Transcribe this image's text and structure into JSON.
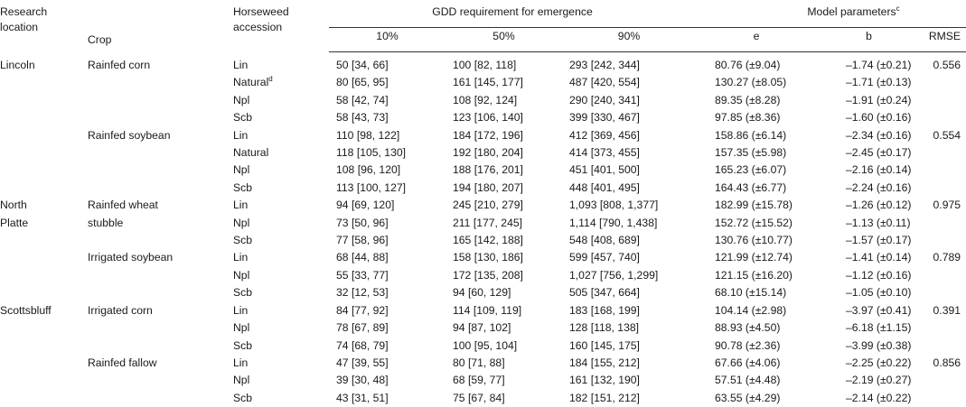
{
  "header": {
    "research_location": "Research location",
    "crop": "Crop",
    "accession": "Horseweed accession",
    "gdd_group": "GDD requirement for emergence",
    "model_group": "Model parameters",
    "model_group_sup": "c",
    "pct10": "10%",
    "pct50": "50%",
    "pct90": "90%",
    "e": "e",
    "b": "b",
    "rmse": "RMSE"
  },
  "rows": [
    {
      "location": "Lincoln",
      "crop": "Rainfed corn",
      "accession": "Lin",
      "accession_sup": "",
      "g10": "50 [34, 66]",
      "g50": "100 [82, 118]",
      "g90": "293 [242, 344]",
      "e": "80.76 (±9.04)",
      "b": "–1.74 (±0.21)",
      "rmse": "0.556"
    },
    {
      "location": "",
      "crop": "",
      "accession": "Natural",
      "accession_sup": "d",
      "g10": "80 [65, 95]",
      "g50": "161 [145, 177]",
      "g90": "487 [420, 554]",
      "e": "130.27 (±8.05)",
      "b": "–1.71 (±0.13)",
      "rmse": ""
    },
    {
      "location": "",
      "crop": "",
      "accession": "Npl",
      "accession_sup": "",
      "g10": "58 [42, 74]",
      "g50": "108 [92, 124]",
      "g90": "290 [240, 341]",
      "e": "89.35 (±8.28)",
      "b": "–1.91 (±0.24)",
      "rmse": ""
    },
    {
      "location": "",
      "crop": "",
      "accession": "Scb",
      "accession_sup": "",
      "g10": "58 [43, 73]",
      "g50": "123 [106, 140]",
      "g90": "399 [330, 467]",
      "e": "97.85 (±8.36)",
      "b": "–1.60 (±0.16)",
      "rmse": ""
    },
    {
      "location": "",
      "crop": "Rainfed soybean",
      "accession": "Lin",
      "accession_sup": "",
      "g10": "110 [98, 122]",
      "g50": "184 [172, 196]",
      "g90": "412 [369, 456]",
      "e": "158.86 (±6.14)",
      "b": "–2.34 (±0.16)",
      "rmse": "0.554"
    },
    {
      "location": "",
      "crop": "",
      "accession": "Natural",
      "accession_sup": "",
      "g10": "118 [105, 130]",
      "g50": "192 [180, 204]",
      "g90": "414 [373, 455]",
      "e": "157.35 (±5.98)",
      "b": "–2.45 (±0.17)",
      "rmse": ""
    },
    {
      "location": "",
      "crop": "",
      "accession": "Npl",
      "accession_sup": "",
      "g10": "108 [96, 120]",
      "g50": "188 [176, 201]",
      "g90": "451 [401, 500]",
      "e": "165.23 (±6.07)",
      "b": "–2.16 (±0.14)",
      "rmse": ""
    },
    {
      "location": "",
      "crop": "",
      "accession": "Scb",
      "accession_sup": "",
      "g10": "113 [100, 127]",
      "g50": "194 [180, 207]",
      "g90": "448 [401, 495]",
      "e": "164.43 (±6.77)",
      "b": "–2.24 (±0.16)",
      "rmse": ""
    },
    {
      "location": "North",
      "crop": "Rainfed wheat",
      "accession": "Lin",
      "accession_sup": "",
      "g10": "94 [69, 120]",
      "g50": "245 [210, 279]",
      "g90": "1,093 [808, 1,377]",
      "e": "182.99 (±15.78)",
      "b": "–1.26 (±0.12)",
      "rmse": "0.975"
    },
    {
      "location": "Platte",
      "crop": "stubble",
      "accession": "Npl",
      "accession_sup": "",
      "g10": "73 [50, 96]",
      "g50": "211 [177, 245]",
      "g90": "1,114 [790, 1,438]",
      "e": "152.72 (±15.52)",
      "b": "–1.13 (±0.11)",
      "rmse": ""
    },
    {
      "location": "",
      "crop": "",
      "accession": "Scb",
      "accession_sup": "",
      "g10": "77 [58, 96]",
      "g50": "165 [142, 188]",
      "g90": "548 [408, 689]",
      "e": "130.76 (±10.77)",
      "b": "–1.57 (±0.17)",
      "rmse": ""
    },
    {
      "location": "",
      "crop": "Irrigated soybean",
      "accession": "Lin",
      "accession_sup": "",
      "g10": "68 [44, 88]",
      "g50": "158 [130, 186]",
      "g90": "599 [457, 740]",
      "e": "121.99 (±12.74)",
      "b": "–1.41 (±0.14)",
      "rmse": "0.789"
    },
    {
      "location": "",
      "crop": "",
      "accession": "Npl",
      "accession_sup": "",
      "g10": "55 [33, 77]",
      "g50": "172 [135, 208]",
      "g90": "1,027 [756, 1,299]",
      "e": "121.15 (±16.20)",
      "b": "–1.12 (±0.16)",
      "rmse": ""
    },
    {
      "location": "",
      "crop": "",
      "accession": "Scb",
      "accession_sup": "",
      "g10": "32 [12, 53]",
      "g50": "94 [60, 129]",
      "g90": "505 [347, 664]",
      "e": "68.10 (±15.14)",
      "b": "–1.05 (±0.10)",
      "rmse": ""
    },
    {
      "location": "Scottsbluff",
      "crop": "Irrigated corn",
      "accession": "Lin",
      "accession_sup": "",
      "g10": "84 [77, 92]",
      "g50": "114 [109, 119]",
      "g90": "183 [168, 199]",
      "e": "104.14 (±2.98)",
      "b": "–3.97 (±0.41)",
      "rmse": "0.391"
    },
    {
      "location": "",
      "crop": "",
      "accession": "Npl",
      "accession_sup": "",
      "g10": "78 [67, 89]",
      "g50": "94 [87, 102]",
      "g90": "128 [118, 138]",
      "e": "88.93 (±4.50)",
      "b": "–6.18 (±1.15)",
      "rmse": ""
    },
    {
      "location": "",
      "crop": "",
      "accession": "Scb",
      "accession_sup": "",
      "g10": "74 [68, 79]",
      "g50": "100 [95, 104]",
      "g90": "160 [145, 175]",
      "e": "90.78 (±2.36)",
      "b": "–3.99 (±0.38)",
      "rmse": ""
    },
    {
      "location": "",
      "crop": "Rainfed fallow",
      "accession": "Lin",
      "accession_sup": "",
      "g10": "47 [39, 55]",
      "g50": "80 [71, 88]",
      "g90": "184 [155, 212]",
      "e": "67.66 (±4.06)",
      "b": "–2.25 (±0.22)",
      "rmse": "0.856"
    },
    {
      "location": "",
      "crop": "",
      "accession": "Npl",
      "accession_sup": "",
      "g10": "39 [30, 48]",
      "g50": "68 [59, 77]",
      "g90": "161 [132, 190]",
      "e": "57.51 (±4.48)",
      "b": "–2.19 (±0.27)",
      "rmse": ""
    },
    {
      "location": "",
      "crop": "",
      "accession": "Scb",
      "accession_sup": "",
      "g10": "43 [31, 51]",
      "g50": "75 [67, 84]",
      "g90": "182 [151, 212]",
      "e": "63.55 (±4.29)",
      "b": "–2.14 (±0.22)",
      "rmse": ""
    }
  ]
}
